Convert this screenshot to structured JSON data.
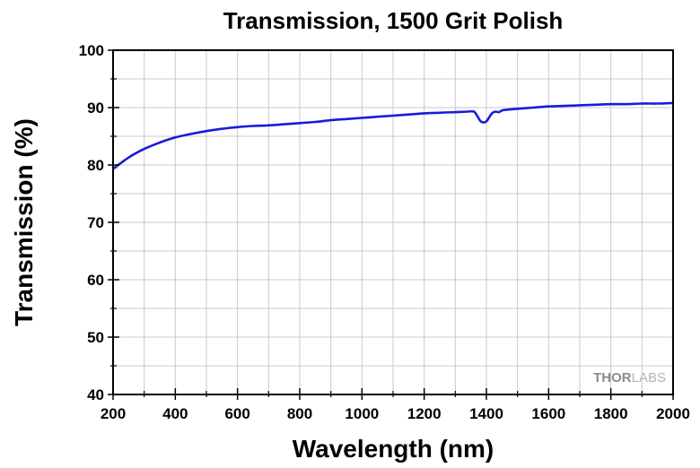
{
  "chart_data": {
    "type": "line",
    "title": "Transmission, 1500 Grit Polish",
    "xlabel": "Wavelength (nm)",
    "ylabel": "Transmission (%)",
    "xlim": [
      200,
      2000
    ],
    "ylim": [
      40,
      100
    ],
    "xticks": [
      200,
      400,
      600,
      800,
      1000,
      1200,
      1400,
      1600,
      1800,
      2000
    ],
    "yticks": [
      40,
      50,
      60,
      70,
      80,
      90,
      100
    ],
    "grid": true,
    "legend": "none",
    "line_color": "#1a1adb",
    "series": [
      {
        "x": [
          200,
          250,
          300,
          350,
          400,
          450,
          500,
          550,
          600,
          650,
          700,
          750,
          800,
          850,
          900,
          950,
          1000,
          1050,
          1100,
          1150,
          1200,
          1250,
          1300,
          1340,
          1360,
          1370,
          1380,
          1390,
          1400,
          1410,
          1420,
          1430,
          1440,
          1450,
          1460,
          1500,
          1550,
          1600,
          1650,
          1700,
          1750,
          1800,
          1850,
          1900,
          1950,
          2000
        ],
        "values": [
          79.3,
          81.3,
          82.8,
          83.9,
          84.8,
          85.4,
          85.9,
          86.3,
          86.6,
          86.8,
          86.9,
          87.1,
          87.3,
          87.5,
          87.8,
          88.0,
          88.2,
          88.4,
          88.6,
          88.8,
          89.0,
          89.1,
          89.2,
          89.3,
          89.3,
          88.6,
          87.7,
          87.4,
          87.6,
          88.4,
          89.1,
          89.3,
          89.2,
          89.5,
          89.6,
          89.8,
          90.0,
          90.2,
          90.3,
          90.4,
          90.5,
          90.6,
          90.6,
          90.7,
          90.7,
          90.8
        ]
      }
    ]
  },
  "watermark": {
    "part1": "THOR",
    "part2": "LABS"
  }
}
